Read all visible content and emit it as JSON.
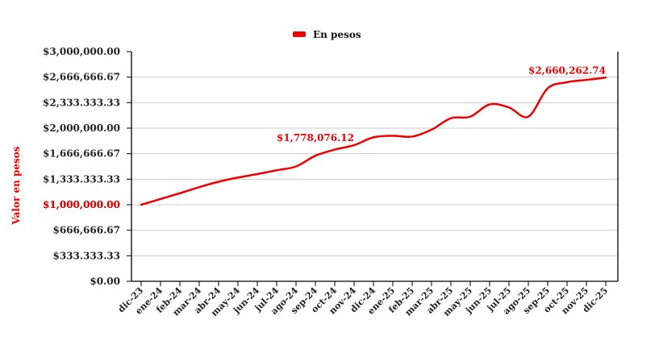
{
  "chart_data": {
    "type": "line",
    "title": "",
    "xlabel": "",
    "ylabel": "Valor en pesos",
    "ylim": [
      0,
      3000000
    ],
    "grid": true,
    "legend_position": "top-center",
    "y_ticks": [
      {
        "value": 0,
        "label": "$0.00"
      },
      {
        "value": 333333.33,
        "label": "$333.333.33"
      },
      {
        "value": 666666.67,
        "label": "$666,666.67"
      },
      {
        "value": 1000000,
        "label": "$1,000,000.00"
      },
      {
        "value": 1333333.33,
        "label": "$1,333.333.33"
      },
      {
        "value": 1666666.67,
        "label": "$1,666,666.67"
      },
      {
        "value": 2000000,
        "label": "$2,000,000.00"
      },
      {
        "value": 2333333.33,
        "label": "$2,333.333.33"
      },
      {
        "value": 2666666.67,
        "label": "$2,666,666.67"
      },
      {
        "value": 3000000,
        "label": "$3,000,000.00"
      }
    ],
    "categories": [
      "dic-23",
      "ene-24",
      "feb-24",
      "mar-24",
      "abr-24",
      "may-24",
      "jun-24",
      "jul-24",
      "ago-24",
      "sep-24",
      "oct-24",
      "nov-24",
      "dic-24",
      "ene-25",
      "feb-25",
      "mar-25",
      "abr-25",
      "may-25",
      "jun-25",
      "jul-25",
      "ago-25",
      "sep-25",
      "oct-25",
      "nov-25",
      "dic-25"
    ],
    "series": [
      {
        "name": "En pesos",
        "color": "#ee0000",
        "values": [
          1000000,
          1075000,
          1150000,
          1230000,
          1300000,
          1355000,
          1400000,
          1450000,
          1500000,
          1640000,
          1720000,
          1778076.12,
          1880000,
          1900000,
          1890000,
          1980000,
          2130000,
          2150000,
          2310000,
          2270000,
          2150000,
          2520000,
          2600000,
          2630000,
          2660262.74
        ]
      }
    ],
    "annotations": [
      {
        "category": "nov-24",
        "value": 1778076.12,
        "text": "$1,778,076.12"
      },
      {
        "category": "dic-25",
        "value": 2660262.74,
        "text": "$2,660,262.74"
      }
    ],
    "overlay_label": {
      "value": 1000000,
      "text": "$1,000,000.00"
    }
  }
}
